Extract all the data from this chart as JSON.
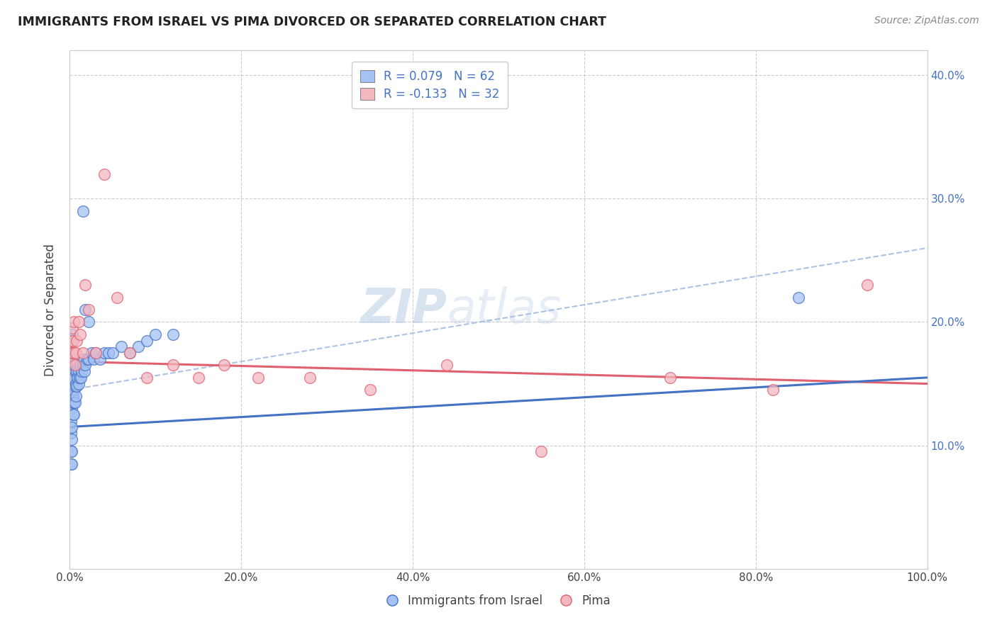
{
  "title": "IMMIGRANTS FROM ISRAEL VS PIMA DIVORCED OR SEPARATED CORRELATION CHART",
  "source": "Source: ZipAtlas.com",
  "ylabel": "Divorced or Separated",
  "xlim": [
    0,
    1.0
  ],
  "ylim": [
    0,
    0.42
  ],
  "xticks": [
    0.0,
    0.2,
    0.4,
    0.6,
    0.8,
    1.0
  ],
  "xticklabels": [
    "0.0%",
    "20.0%",
    "40.0%",
    "60.0%",
    "80.0%",
    "100.0%"
  ],
  "yticks_right": [
    0.1,
    0.2,
    0.3,
    0.4
  ],
  "yticklabels_right": [
    "10.0%",
    "20.0%",
    "30.0%",
    "40.0%"
  ],
  "legend_label1": "R = 0.079   N = 62",
  "legend_label2": "R = -0.133   N = 32",
  "color_blue": "#a4c2f4",
  "color_pink": "#f4b8c1",
  "line_color_blue": "#4472c4",
  "line_color_pink": "#e06070",
  "background_color": "#ffffff",
  "grid_color": "#c0c0c0",
  "watermark_zip": "ZIP",
  "watermark_atlas": "atlas",
  "blue_line_intercept": 0.115,
  "blue_line_slope": 0.04,
  "blue_dashed_intercept": 0.145,
  "blue_dashed_slope": 0.115,
  "pink_line_intercept": 0.168,
  "pink_line_slope": -0.018,
  "blue_x": [
    0.001,
    0.001,
    0.001,
    0.001,
    0.001,
    0.002,
    0.002,
    0.002,
    0.002,
    0.002,
    0.002,
    0.003,
    0.003,
    0.003,
    0.003,
    0.003,
    0.004,
    0.004,
    0.004,
    0.004,
    0.005,
    0.005,
    0.005,
    0.005,
    0.006,
    0.006,
    0.006,
    0.007,
    0.007,
    0.008,
    0.008,
    0.009,
    0.009,
    0.01,
    0.01,
    0.011,
    0.012,
    0.013,
    0.014,
    0.015,
    0.016,
    0.017,
    0.018,
    0.02,
    0.022,
    0.025,
    0.028,
    0.03,
    0.035,
    0.04,
    0.045,
    0.05,
    0.06,
    0.07,
    0.08,
    0.09,
    0.1,
    0.12,
    0.015,
    0.018,
    0.022,
    0.85
  ],
  "blue_y": [
    0.145,
    0.12,
    0.11,
    0.095,
    0.085,
    0.14,
    0.13,
    0.115,
    0.105,
    0.095,
    0.085,
    0.19,
    0.175,
    0.16,
    0.145,
    0.135,
    0.165,
    0.155,
    0.14,
    0.125,
    0.155,
    0.145,
    0.135,
    0.125,
    0.16,
    0.148,
    0.135,
    0.15,
    0.14,
    0.16,
    0.148,
    0.165,
    0.155,
    0.16,
    0.15,
    0.155,
    0.165,
    0.155,
    0.16,
    0.165,
    0.17,
    0.16,
    0.165,
    0.17,
    0.17,
    0.175,
    0.17,
    0.175,
    0.17,
    0.175,
    0.175,
    0.175,
    0.18,
    0.175,
    0.18,
    0.185,
    0.19,
    0.19,
    0.29,
    0.21,
    0.2,
    0.22
  ],
  "pink_x": [
    0.001,
    0.002,
    0.002,
    0.003,
    0.003,
    0.004,
    0.005,
    0.005,
    0.006,
    0.007,
    0.008,
    0.01,
    0.012,
    0.015,
    0.018,
    0.022,
    0.03,
    0.04,
    0.055,
    0.07,
    0.09,
    0.12,
    0.15,
    0.18,
    0.22,
    0.28,
    0.35,
    0.44,
    0.55,
    0.7,
    0.82,
    0.93
  ],
  "pink_y": [
    0.17,
    0.185,
    0.175,
    0.195,
    0.175,
    0.185,
    0.2,
    0.175,
    0.165,
    0.175,
    0.185,
    0.2,
    0.19,
    0.175,
    0.23,
    0.21,
    0.175,
    0.32,
    0.22,
    0.175,
    0.155,
    0.165,
    0.155,
    0.165,
    0.155,
    0.155,
    0.145,
    0.165,
    0.095,
    0.155,
    0.145,
    0.23
  ]
}
